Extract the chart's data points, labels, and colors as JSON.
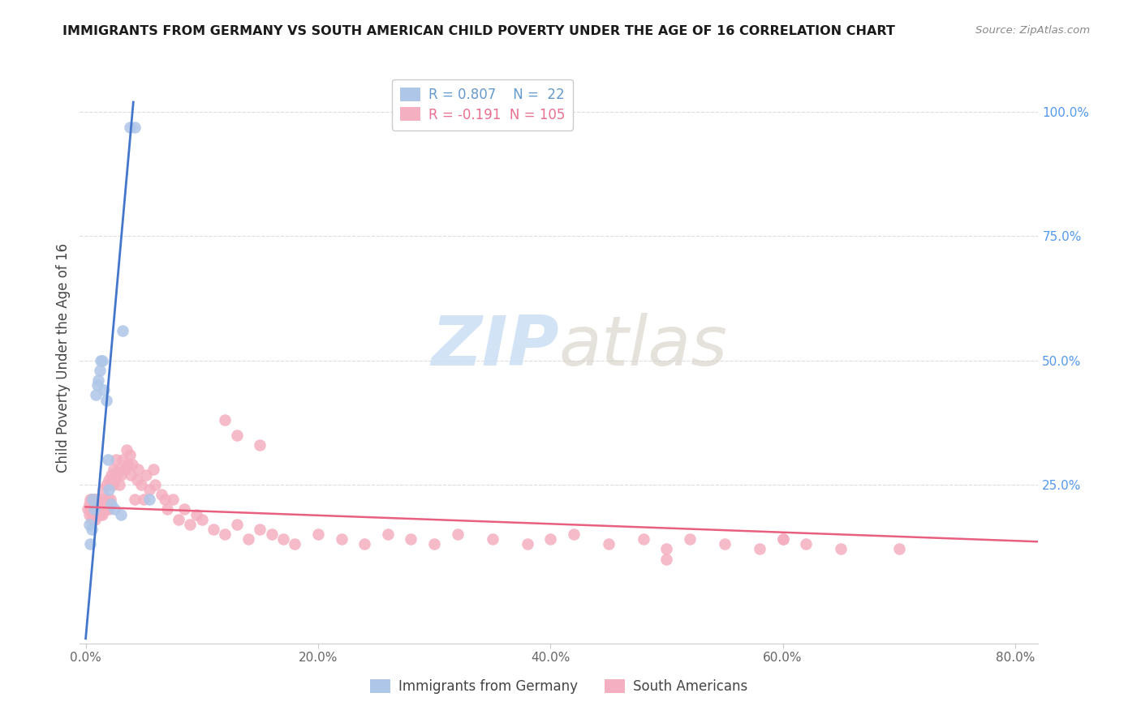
{
  "title": "IMMIGRANTS FROM GERMANY VS SOUTH AMERICAN CHILD POVERTY UNDER THE AGE OF 16 CORRELATION CHART",
  "source": "Source: ZipAtlas.com",
  "ylabel": "Child Poverty Under the Age of 16",
  "blue_color": "#aec6e8",
  "pink_color": "#f4afc0",
  "blue_line_color": "#4477cc",
  "pink_line_color": "#e86080",
  "blue_legend_text_r": "R = 0.807",
  "blue_legend_text_n": "N =  22",
  "pink_legend_text_r": "R = -0.191",
  "pink_legend_text_n": "N = 105",
  "blue_legend_color": "#6699cc",
  "pink_legend_color": "#e87090",
  "watermark_zip_color": "#ccdff5",
  "watermark_atlas_color": "#d5cfc5",
  "grid_color": "#dddddd",
  "right_tick_color": "#5599ee",
  "spine_color": "#cccccc",
  "title_color": "#1a1a1a",
  "source_color": "#888888",
  "axis_label_color": "#444444",
  "tick_label_color": "#666666",
  "xlim": [
    -0.005,
    0.82
  ],
  "ylim": [
    -0.07,
    1.08
  ],
  "xticks": [
    0.0,
    0.2,
    0.4,
    0.6,
    0.8
  ],
  "xtick_labels": [
    "0.0%",
    "20.0%",
    "40.0%",
    "60.0%",
    "80.0%"
  ],
  "yticks_right": [
    1.0,
    0.75,
    0.5,
    0.25
  ],
  "ytick_labels_right": [
    "100.0%",
    "75.0%",
    "50.0%",
    "25.0%"
  ],
  "hgrid_lines": [
    0.25,
    0.5,
    0.75,
    1.0
  ],
  "blue_x": [
    0.003,
    0.004,
    0.005,
    0.006,
    0.007,
    0.009,
    0.01,
    0.011,
    0.012,
    0.013,
    0.014,
    0.016,
    0.018,
    0.019,
    0.02,
    0.022,
    0.025,
    0.03,
    0.032,
    0.038,
    0.042,
    0.055
  ],
  "blue_y": [
    0.17,
    0.13,
    0.16,
    0.22,
    0.2,
    0.43,
    0.45,
    0.46,
    0.48,
    0.5,
    0.5,
    0.44,
    0.42,
    0.3,
    0.24,
    0.21,
    0.2,
    0.19,
    0.56,
    0.97,
    0.97,
    0.22
  ],
  "blue_line_x": [
    0.0,
    0.041
  ],
  "blue_line_y": [
    -0.06,
    1.02
  ],
  "pink_line_x": [
    0.0,
    0.82
  ],
  "pink_line_y": [
    0.205,
    0.135
  ],
  "pink_x": [
    0.002,
    0.003,
    0.003,
    0.004,
    0.004,
    0.005,
    0.005,
    0.005,
    0.006,
    0.006,
    0.007,
    0.007,
    0.007,
    0.008,
    0.008,
    0.008,
    0.009,
    0.009,
    0.01,
    0.01,
    0.011,
    0.011,
    0.012,
    0.012,
    0.013,
    0.013,
    0.014,
    0.015,
    0.015,
    0.016,
    0.017,
    0.018,
    0.018,
    0.019,
    0.02,
    0.02,
    0.021,
    0.022,
    0.023,
    0.024,
    0.025,
    0.026,
    0.027,
    0.028,
    0.029,
    0.03,
    0.032,
    0.034,
    0.035,
    0.036,
    0.038,
    0.039,
    0.04,
    0.042,
    0.044,
    0.045,
    0.048,
    0.05,
    0.052,
    0.055,
    0.058,
    0.06,
    0.065,
    0.068,
    0.07,
    0.075,
    0.08,
    0.085,
    0.09,
    0.095,
    0.1,
    0.11,
    0.12,
    0.13,
    0.14,
    0.15,
    0.16,
    0.17,
    0.18,
    0.2,
    0.22,
    0.24,
    0.26,
    0.28,
    0.3,
    0.32,
    0.35,
    0.38,
    0.4,
    0.42,
    0.45,
    0.48,
    0.5,
    0.52,
    0.55,
    0.58,
    0.6,
    0.62,
    0.65,
    0.12,
    0.13,
    0.15,
    0.5,
    0.6,
    0.7
  ],
  "pink_y": [
    0.2,
    0.19,
    0.21,
    0.2,
    0.22,
    0.18,
    0.2,
    0.22,
    0.19,
    0.21,
    0.2,
    0.22,
    0.19,
    0.2,
    0.21,
    0.18,
    0.2,
    0.22,
    0.19,
    0.21,
    0.2,
    0.22,
    0.19,
    0.21,
    0.2,
    0.22,
    0.19,
    0.24,
    0.21,
    0.2,
    0.22,
    0.25,
    0.2,
    0.22,
    0.26,
    0.2,
    0.22,
    0.27,
    0.25,
    0.28,
    0.26,
    0.3,
    0.27,
    0.28,
    0.25,
    0.27,
    0.3,
    0.28,
    0.32,
    0.29,
    0.31,
    0.27,
    0.29,
    0.22,
    0.26,
    0.28,
    0.25,
    0.22,
    0.27,
    0.24,
    0.28,
    0.25,
    0.23,
    0.22,
    0.2,
    0.22,
    0.18,
    0.2,
    0.17,
    0.19,
    0.18,
    0.16,
    0.15,
    0.17,
    0.14,
    0.16,
    0.15,
    0.14,
    0.13,
    0.15,
    0.14,
    0.13,
    0.15,
    0.14,
    0.13,
    0.15,
    0.14,
    0.13,
    0.14,
    0.15,
    0.13,
    0.14,
    0.12,
    0.14,
    0.13,
    0.12,
    0.14,
    0.13,
    0.12,
    0.38,
    0.35,
    0.33,
    0.1,
    0.14,
    0.12
  ]
}
